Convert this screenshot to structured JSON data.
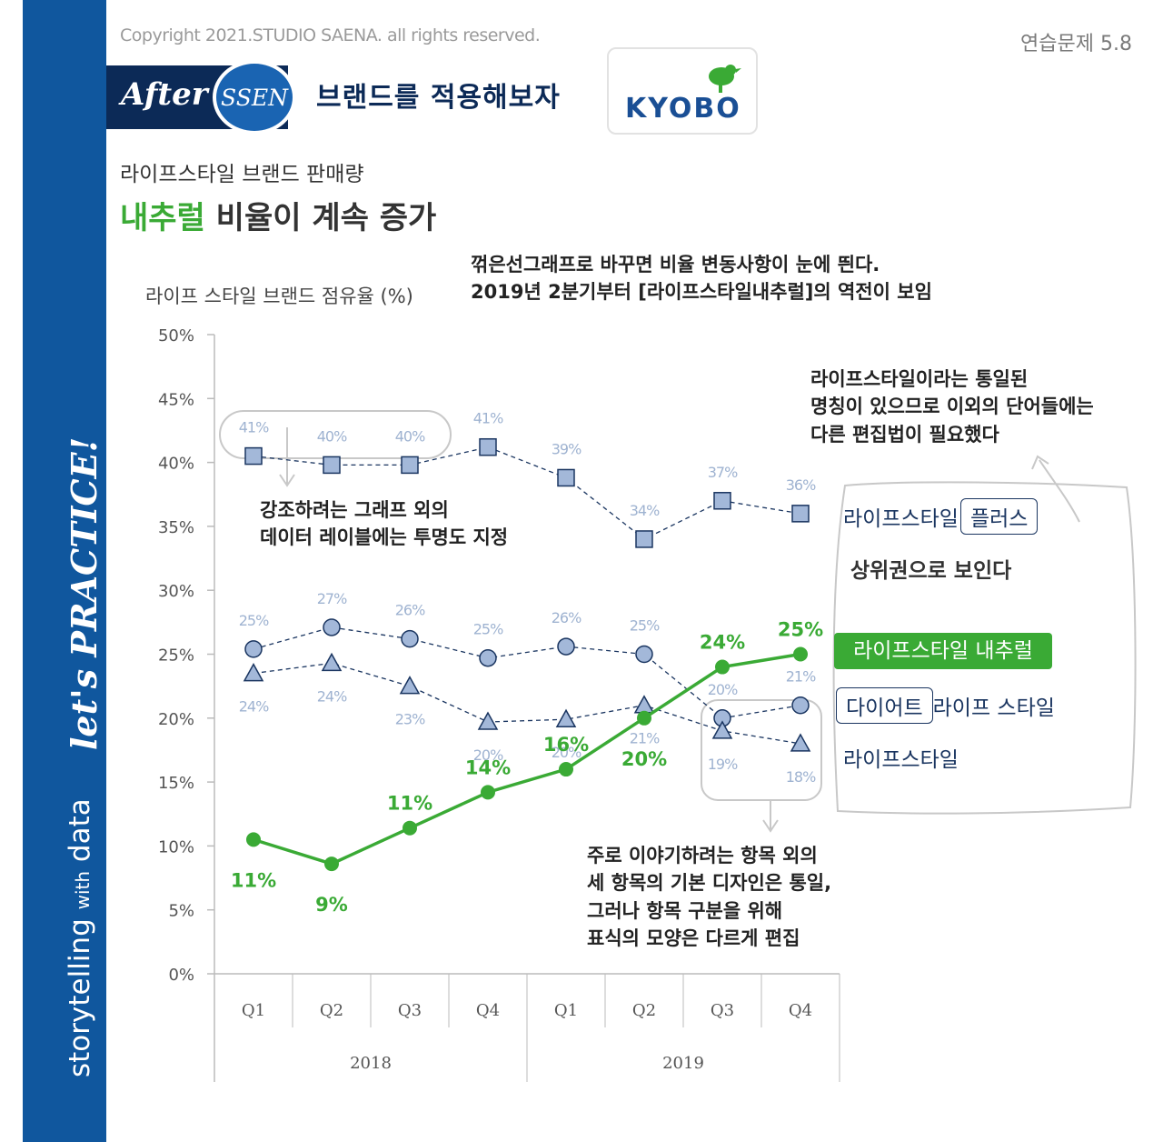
{
  "sidebar": {
    "tag_prefix": "storytelling",
    "tag_with": "with",
    "tag_suffix": "data",
    "practice": "let's PRACTICE!"
  },
  "header": {
    "copyright": "Copyright 2021.STUDIO SAENA. all rights reserved.",
    "exercise": "연습문제 5.8",
    "after_label": "After",
    "ssen_label": "SSEN",
    "banner_message": "브랜드를 적용해보자",
    "logo_text": "KYOBO"
  },
  "title": {
    "subtitle": "라이프스타일 브랜드 판매량",
    "headline_highlight": "내추럴",
    "headline_rest": " 비율이 계속 증가"
  },
  "notes": {
    "top": [
      "꺾은선그래프로 바꾸면 비율 변동사항이 눈에 띈다.",
      "2019년 2분기부터 [라이프스타일내추럴]의 역전이 보임"
    ],
    "transparent": [
      "강조하려는 그래프 외의",
      "데이터 레이블에는 투명도 지정"
    ],
    "unified": [
      "라이프스타일이라는 통일된",
      "명칭이 있으므로 이외의 단어들에는",
      "다른 편집법이 필요했다"
    ],
    "markers": [
      "주로 이야기하려는 항목 외의",
      "세 항목의 기본 디자인은 통일,",
      "그러나 항목 구분을 위해",
      "표식의 모양은 다르게 편집"
    ]
  },
  "legend": {
    "plus_prefix": "라이프스타일",
    "plus_boxed": "플러스",
    "plus_note": "상위권으로 보인다",
    "natural": "라이프스타일 내추럴",
    "diet_boxed": "다이어트",
    "diet_suffix": "라이프 스타일",
    "basic": "라이프스타일"
  },
  "colors": {
    "accent_green": "#3aaa35",
    "navy": "#10579e",
    "marker_fill": "#a3b8d9",
    "marker_stroke": "#1a3560",
    "faint_label": "#9fb3d1"
  },
  "chart_data": {
    "type": "line",
    "ylabel": "라이프 스타일 브랜드 점유율 (%)",
    "ylim": [
      0,
      50
    ],
    "yticks": [
      0,
      5,
      10,
      15,
      20,
      25,
      30,
      35,
      40,
      45,
      50
    ],
    "ytick_labels": [
      "0%",
      "5%",
      "10%",
      "15%",
      "20%",
      "25%",
      "30%",
      "35%",
      "40%",
      "45%",
      "50%"
    ],
    "categories": [
      "Q1",
      "Q2",
      "Q3",
      "Q4",
      "Q1",
      "Q2",
      "Q3",
      "Q4"
    ],
    "groups": [
      {
        "label": "2018",
        "count": 4
      },
      {
        "label": "2019",
        "count": 4
      }
    ],
    "series": [
      {
        "name": "라이프스타일 플러스",
        "marker": "square",
        "style": "dashed",
        "values": [
          40.5,
          39.8,
          39.8,
          41.2,
          38.8,
          34,
          37,
          36
        ],
        "labels": [
          "41%",
          "40%",
          "40%",
          "41%",
          "39%",
          "34%",
          "37%",
          "36%"
        ],
        "label_pos": "above"
      },
      {
        "name": "다이어트 라이프 스타일",
        "marker": "circle",
        "style": "dashed",
        "values": [
          25.4,
          27.1,
          26.2,
          24.7,
          25.6,
          25,
          20,
          21
        ],
        "labels": [
          "25%",
          "27%",
          "26%",
          "25%",
          "26%",
          "25%",
          "20%",
          "21%"
        ],
        "label_pos": "above"
      },
      {
        "name": "라이프스타일",
        "marker": "triangle",
        "style": "dashed",
        "values": [
          23.5,
          24.3,
          22.5,
          19.7,
          19.9,
          21,
          19,
          18
        ],
        "labels": [
          "24%",
          "24%",
          "23%",
          "20%",
          "20%",
          "21%",
          "19%",
          "18%"
        ],
        "label_pos": "below"
      },
      {
        "name": "라이프스타일 내추럴",
        "marker": "dot",
        "style": "solid",
        "highlight": true,
        "values": [
          10.5,
          8.6,
          11.4,
          14.2,
          16,
          20,
          24,
          25
        ],
        "labels": [
          "11%",
          "9%",
          "11%",
          "14%",
          "16%",
          "20%",
          "24%",
          "25%"
        ],
        "label_pos": "mixed"
      }
    ]
  }
}
